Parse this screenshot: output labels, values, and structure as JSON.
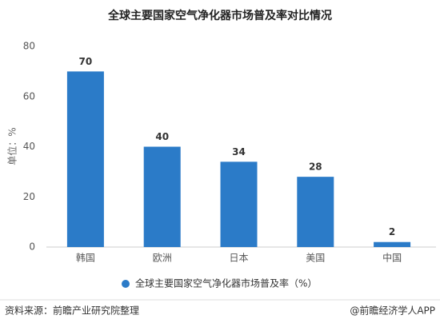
{
  "chart_data": {
    "type": "bar",
    "title": "全球主要国家空气净化器市场普及率对比情况",
    "y_label": "单位：%",
    "categories": [
      "韩国",
      "欧洲",
      "日本",
      "美国",
      "中国"
    ],
    "series": [
      {
        "name": "全球主要国家空气净化器市场普及率（%）",
        "color": "#2b7bc8",
        "values": [
          70,
          40,
          34,
          28,
          2
        ]
      }
    ],
    "ylim": [
      0,
      80
    ],
    "yticks": [
      0,
      20,
      40,
      60,
      80
    ],
    "grid": false,
    "legend": "bottom"
  },
  "footer": {
    "source": "资料来源：前瞻产业研究院整理",
    "credit": "@前瞻经济学人APP"
  }
}
